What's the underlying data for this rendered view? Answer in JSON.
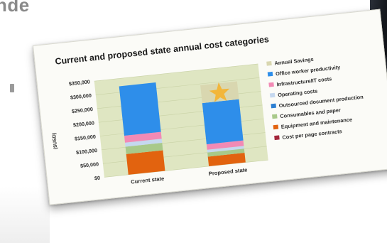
{
  "background": {
    "heading_fragment": "nde"
  },
  "chart_data": {
    "type": "bar",
    "stacked": true,
    "title": "Current and proposed state annual cost categories",
    "ylabel": "($USD)",
    "xlabel": "",
    "ylim": [
      0,
      350000
    ],
    "y_ticks": [
      "$350,000",
      "$300,000",
      "$250,000",
      "$200,000",
      "$150,000",
      "$100,000",
      "$50,000",
      "$0"
    ],
    "categories": [
      "Current state",
      "Proposed state"
    ],
    "legend_position": "right",
    "plot_background": "#dfe6c2",
    "series": [
      {
        "name": "Cost per page contracts",
        "color": "#a3263b",
        "values": [
          0,
          0
        ]
      },
      {
        "name": "Equipment and maintenance",
        "color": "#e2630f",
        "values": [
          75000,
          35000
        ]
      },
      {
        "name": "Consumables and paper",
        "color": "#a8c98a",
        "values": [
          27000,
          15000
        ]
      },
      {
        "name": "Outsourced document production",
        "color": "#2c7fd2",
        "values": [
          0,
          0
        ]
      },
      {
        "name": "Operating costs",
        "color": "#c5d8ef",
        "values": [
          15000,
          10000
        ]
      },
      {
        "name": "Infrastructure/IT costs",
        "color": "#f28ab5",
        "values": [
          25000,
          20000
        ]
      },
      {
        "name": "Office worker productivity",
        "color": "#2e8eea",
        "values": [
          180000,
          150000
        ]
      },
      {
        "name": "Annual Savings",
        "color": "#d9d7b0",
        "values": [
          0,
          65000
        ]
      }
    ],
    "legend_order": [
      "Annual Savings",
      "Office worker productivity",
      "Infrastructure/IT costs",
      "Operating costs",
      "Outsourced document production",
      "Consumables and paper",
      "Equipment and maintenance",
      "Cost per page contracts"
    ],
    "savings_marker": {
      "icon": "star-icon",
      "color": "#f2b63a",
      "on_series": "Annual Savings",
      "category": "Proposed state"
    }
  }
}
